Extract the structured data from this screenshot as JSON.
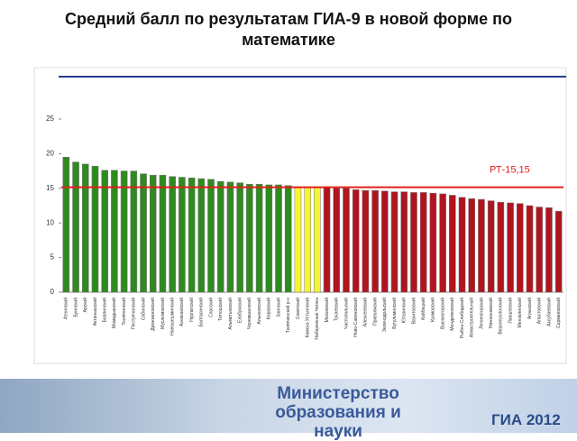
{
  "chart_data": {
    "type": "bar",
    "title": "Средний балл по результатам ГИА-9 в новой форме по математике",
    "categories": [
      "Атнинский",
      "Буинский",
      "Арский",
      "Актанышский",
      "Бавлинский",
      "Мамадышский",
      "Тюлячинский",
      "Пестречинский",
      "Сабинский",
      "Дрожжановский",
      "Муслюмовский",
      "Новошешминский",
      "Азнакаевский",
      "Нурлатский",
      "Балтасинский",
      "Спасский",
      "Тетюшский",
      "Альметьевский",
      "Елабужский",
      "Черемшанский",
      "Алькеевский",
      "Кировский",
      "Заинский",
      "Тюлячинский р-н",
      "Советский",
      "Камско-Устьинский",
      "Набережные Челны",
      "Московский",
      "Тукаевский",
      "Чистопольский",
      "Ново-Савиновский",
      "Алексеевский",
      "Приволжский",
      "Зеленодольский",
      "Бугульминский",
      "Ютазинский",
      "Вахитовский",
      "Кайбицкий",
      "Кукморский",
      "Высокогорский",
      "Менделеевский",
      "Рыбно-Слободский",
      "Авиастроительный",
      "Лениногорский",
      "Нижнекамский",
      "Верхнеуслонский",
      "Лаишевский",
      "Мензелинский",
      "Агрызский",
      "Апастовский",
      "Аксубаевский",
      "Сармановский"
    ],
    "values": [
      19.5,
      18.8,
      18.5,
      18.2,
      17.6,
      17.6,
      17.5,
      17.5,
      17.1,
      16.9,
      16.9,
      16.7,
      16.6,
      16.5,
      16.4,
      16.3,
      16.0,
      15.9,
      15.8,
      15.6,
      15.6,
      15.5,
      15.5,
      15.4,
      15.2,
      15.2,
      15.2,
      15.1,
      15.0,
      15.0,
      14.8,
      14.7,
      14.7,
      14.6,
      14.5,
      14.5,
      14.4,
      14.4,
      14.3,
      14.2,
      14.0,
      13.7,
      13.5,
      13.4,
      13.2,
      13.0,
      12.9,
      12.8,
      12.5,
      12.3,
      12.2,
      11.7
    ],
    "colors": [
      "#2f8a1f",
      "#2f8a1f",
      "#2f8a1f",
      "#2f8a1f",
      "#2f8a1f",
      "#2f8a1f",
      "#2f8a1f",
      "#2f8a1f",
      "#2f8a1f",
      "#2f8a1f",
      "#2f8a1f",
      "#2f8a1f",
      "#2f8a1f",
      "#2f8a1f",
      "#2f8a1f",
      "#2f8a1f",
      "#2f8a1f",
      "#2f8a1f",
      "#2f8a1f",
      "#2f8a1f",
      "#2f8a1f",
      "#2f8a1f",
      "#2f8a1f",
      "#2f8a1f",
      "#f5f533",
      "#f5f533",
      "#f5f533",
      "#b0151f",
      "#b0151f",
      "#b0151f",
      "#b0151f",
      "#b0151f",
      "#b0151f",
      "#b0151f",
      "#b0151f",
      "#b0151f",
      "#b0151f",
      "#b0151f",
      "#b0151f",
      "#b0151f",
      "#b0151f",
      "#b0151f",
      "#b0151f",
      "#b0151f",
      "#b0151f",
      "#b0151f",
      "#b0151f",
      "#b0151f",
      "#b0151f",
      "#b0151f",
      "#b0151f",
      "#b0151f"
    ],
    "ylim": [
      0,
      25
    ],
    "yticks": [
      0,
      5,
      10,
      15,
      20,
      25
    ],
    "grid": false,
    "reference_line": {
      "value": 15.15,
      "label": "РТ-15,15",
      "color": "#e0201b"
    }
  },
  "footer": {
    "ministry": "Министерство образования и науки",
    "logo": "ГИА 2012"
  }
}
